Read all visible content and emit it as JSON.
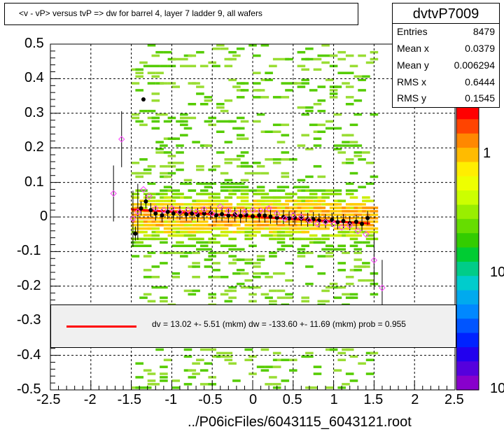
{
  "title": "<v - vP>       versus  tvP =>  dw for barrel 4, layer 7 ladder 9, all wafers",
  "stats": {
    "name": "dvtvP7009",
    "rows": [
      {
        "label": "Entries",
        "value": "8479"
      },
      {
        "label": "Mean x",
        "value": "0.0379"
      },
      {
        "label": "Mean y",
        "value": "0.006294"
      },
      {
        "label": "RMS x",
        "value": "0.6444"
      },
      {
        "label": "RMS y",
        "value": "0.1545"
      }
    ]
  },
  "fit_legend_text": "dv =   13.02 +-  5.51 (mkm) dw = -133.60 +- 11.69 (mkm) prob = 0.955",
  "palette_labels": [
    "1",
    "10",
    "10"
  ],
  "colors": {
    "fit_line": "#ff0000",
    "profile_points": "#000000",
    "open_markers": "#ff44ff",
    "legend_bg": "#f0f0f0"
  },
  "chart_data": {
    "type": "heatmap",
    "title": "<v - vP>       versus  tvP =>  dw for barrel 4, layer 7 ladder 9, all wafers",
    "xlabel": "../P06icFiles/6043115_6043121.root",
    "ylabel": "",
    "xlim": [
      -2.5,
      2.5
    ],
    "ylim": [
      -0.5,
      0.5
    ],
    "x_ticks": [
      "-2.5",
      "-2",
      "-1.5",
      "-1",
      "-0.5",
      "0",
      "0.5",
      "1",
      "1.5",
      "2",
      "2.5"
    ],
    "y_ticks": [
      "0.5",
      "0.4",
      "0.3",
      "0.2",
      "0.1",
      "0",
      "-0.1",
      "-0.2",
      "-0.3",
      "-0.4",
      "-0.5"
    ],
    "grid": true,
    "fit_line": {
      "x": [
        -1.5,
        1.45
      ],
      "y": [
        0.022,
        -0.019
      ]
    },
    "profile_points": {
      "x": [
        -1.45,
        -1.38,
        -1.32,
        -1.26,
        -1.2,
        -1.12,
        -1.05,
        -0.98,
        -0.9,
        -0.82,
        -0.75,
        -0.68,
        -0.6,
        -0.52,
        -0.45,
        -0.38,
        -0.3,
        -0.22,
        -0.15,
        -0.08,
        0.0,
        0.08,
        0.15,
        0.22,
        0.3,
        0.38,
        0.45,
        0.52,
        0.6,
        0.68,
        0.75,
        0.82,
        0.9,
        0.98,
        1.05,
        1.12,
        1.2,
        1.28,
        1.35,
        1.42
      ],
      "y": [
        -0.048,
        0.025,
        0.045,
        0.02,
        0.01,
        0.005,
        0.015,
        0.01,
        0.012,
        0.008,
        0.01,
        0.006,
        0.01,
        0.012,
        0.005,
        0.008,
        0.004,
        0.007,
        0.003,
        0.006,
        0.002,
        0.005,
        0.004,
        0.001,
        -0.002,
        0.0,
        -0.004,
        -0.002,
        -0.005,
        -0.008,
        -0.006,
        -0.01,
        -0.012,
        -0.008,
        -0.015,
        -0.012,
        -0.018,
        -0.014,
        -0.02,
        -0.003
      ]
    },
    "open_markers": {
      "x": [
        -1.72,
        -1.62,
        -1.48,
        -1.42,
        -1.35,
        -1.28,
        -1.2,
        -1.1,
        -1.0,
        -0.9,
        -0.8,
        -0.7,
        -0.6,
        -0.5,
        -0.4,
        -0.3,
        -0.2,
        -0.1,
        0.0,
        0.1,
        0.2,
        0.3,
        0.4,
        0.5,
        0.6,
        0.7,
        0.8,
        0.9,
        1.0,
        1.1,
        1.2,
        1.3,
        1.4,
        1.5,
        1.6
      ],
      "y": [
        0.068,
        0.225,
        -0.005,
        0.015,
        0.08,
        0.06,
        0.025,
        0.02,
        0.025,
        0.015,
        0.02,
        0.015,
        0.022,
        0.01,
        0.03,
        0.018,
        0.012,
        0.015,
        0.02,
        0.018,
        0.025,
        0.01,
        -0.005,
        0.005,
        0.0,
        -0.01,
        -0.02,
        -0.015,
        -0.02,
        -0.03,
        -0.025,
        -0.04,
        -0.05,
        -0.125,
        -0.205
      ]
    }
  }
}
